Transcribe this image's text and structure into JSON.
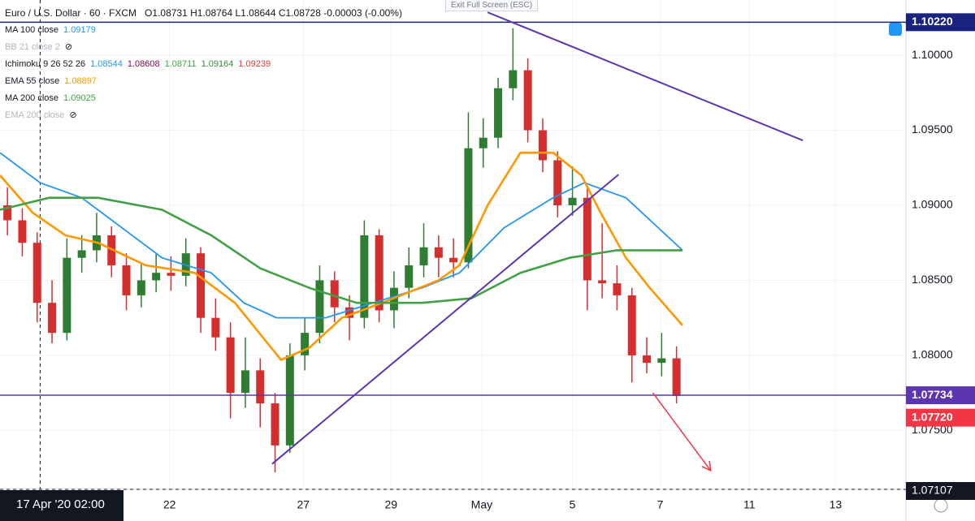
{
  "chart_data": {
    "type": "candlestick",
    "title": "Euro / U.S. Dollar · 60 · FXCM",
    "ohlc_header": "O1.08731 H1.08764 L1.08644 C1.08728 -0.00003 (-0.00%)",
    "exit_hint": "Exit Full Screen (ESC)",
    "up_color": "#2e7d32",
    "down_color": "#d32f2f",
    "xlim": [
      -0.5,
      60.43
    ],
    "ylim": [
      1.07107,
      1.10368
    ],
    "xticks": [
      {
        "value": 10.9,
        "label": "22"
      },
      {
        "value": 19.9,
        "label": "27"
      },
      {
        "value": 25.8,
        "label": "29"
      },
      {
        "value": 31.9,
        "label": "May"
      },
      {
        "value": 38,
        "label": "5"
      },
      {
        "value": 43.9,
        "label": "7"
      },
      {
        "value": 49.9,
        "label": "11"
      },
      {
        "value": 55.7,
        "label": "13"
      }
    ],
    "yticks": [
      {
        "value": 1.075,
        "label": "1.07500"
      },
      {
        "value": 1.08,
        "label": "1.08000"
      },
      {
        "value": 1.085,
        "label": "1.08500"
      },
      {
        "value": 1.09,
        "label": "1.09000"
      },
      {
        "value": 1.095,
        "label": "1.09500"
      },
      {
        "value": 1.1,
        "label": "1.10000"
      }
    ],
    "candles": [
      [
        1.09,
        1.0912,
        1.088,
        1.089
      ],
      [
        1.089,
        1.0898,
        1.0866,
        1.0875
      ],
      [
        1.0875,
        1.0882,
        1.0822,
        1.0835
      ],
      [
        1.0835,
        1.085,
        1.0808,
        1.0815
      ],
      [
        1.0815,
        1.0878,
        1.081,
        1.0865
      ],
      [
        1.0865,
        1.088,
        1.0855,
        1.087
      ],
      [
        1.087,
        1.0895,
        1.0862,
        1.088
      ],
      [
        1.088,
        1.0886,
        1.0852,
        1.086
      ],
      [
        1.086,
        1.0868,
        1.083,
        1.084
      ],
      [
        1.084,
        1.0862,
        1.0832,
        1.085
      ],
      [
        1.085,
        1.0868,
        1.0842,
        1.0855
      ],
      [
        1.0855,
        1.0866,
        1.0843,
        1.0853
      ],
      [
        1.0853,
        1.0878,
        1.0846,
        1.0868
      ],
      [
        1.0868,
        1.0872,
        1.0815,
        1.0825
      ],
      [
        1.0825,
        1.0838,
        1.0803,
        1.0812
      ],
      [
        1.0812,
        1.0822,
        1.0758,
        1.0775
      ],
      [
        1.0775,
        1.0812,
        1.0765,
        1.079
      ],
      [
        1.079,
        1.0798,
        1.0752,
        1.0768
      ],
      [
        1.0768,
        1.0775,
        1.0722,
        1.074
      ],
      [
        1.074,
        1.0808,
        1.0735,
        1.08
      ],
      [
        1.08,
        1.0825,
        1.079,
        1.0815
      ],
      [
        1.0815,
        1.086,
        1.0808,
        1.085
      ],
      [
        1.085,
        1.0856,
        1.0822,
        1.0832
      ],
      [
        1.0832,
        1.084,
        1.081,
        1.0825
      ],
      [
        1.0825,
        1.089,
        1.0818,
        1.088
      ],
      [
        1.088,
        1.0884,
        1.0822,
        1.083
      ],
      [
        1.083,
        1.0856,
        1.0818,
        1.0845
      ],
      [
        1.0845,
        1.0872,
        1.0838,
        1.086
      ],
      [
        1.086,
        1.0888,
        1.0852,
        1.0872
      ],
      [
        1.0872,
        1.088,
        1.0852,
        1.0865
      ],
      [
        1.0865,
        1.0878,
        1.0852,
        1.0862
      ],
      [
        1.0862,
        1.0962,
        1.0858,
        1.0938
      ],
      [
        1.0938,
        1.0958,
        1.0925,
        1.0945
      ],
      [
        1.0945,
        1.0985,
        1.0938,
        1.0978
      ],
      [
        1.0978,
        1.1018,
        1.097,
        1.099
      ],
      [
        1.099,
        1.0998,
        1.0942,
        1.095
      ],
      [
        1.095,
        1.0958,
        1.0922,
        1.093
      ],
      [
        1.093,
        1.0936,
        1.0892,
        1.09
      ],
      [
        1.09,
        1.0926,
        1.0893,
        1.0905
      ],
      [
        1.0905,
        1.0912,
        1.083,
        1.085
      ],
      [
        1.085,
        1.0888,
        1.0838,
        1.0848
      ],
      [
        1.0848,
        1.086,
        1.083,
        1.084
      ],
      [
        1.084,
        1.0845,
        1.0782,
        1.08
      ],
      [
        1.08,
        1.0812,
        1.0788,
        1.0795
      ],
      [
        1.0795,
        1.0815,
        1.0786,
        1.0798
      ],
      [
        1.0798,
        1.0806,
        1.0768,
        1.0773
      ]
    ],
    "legend": [
      {
        "name": "MA 100 close",
        "values": [
          1.09179
        ],
        "colors": [
          "#2196f3"
        ],
        "line": {
          "x": [
            -0.5,
            2.2,
            5,
            7.7,
            10.4,
            13.7,
            15.9,
            18.1,
            21.4,
            24.6,
            27.9,
            30.4,
            33.4,
            36.7,
            38.8,
            41.6,
            45.4
          ],
          "values": [
            1.0935,
            1.0915,
            1.0905,
            1.0885,
            1.0865,
            1.0855,
            1.0835,
            1.0825,
            1.0825,
            1.0835,
            1.0845,
            1.0855,
            1.0885,
            1.0905,
            1.0915,
            1.0905,
            1.087
          ]
        }
      },
      {
        "name": "BB 21 close 2",
        "hidden": true
      },
      {
        "name": "Ichimoku 9 26 52 26",
        "values": [
          1.08544,
          1.08608,
          1.08711,
          1.09164,
          1.09239
        ],
        "colors": [
          "#2196f3",
          "#880e4f",
          "#43a047",
          "#388e3c",
          "#e53935"
        ]
      },
      {
        "name": "EMA 55 close",
        "values": [
          1.08897
        ],
        "colors": [
          "#ff9800"
        ],
        "line": {
          "x": [
            -0.5,
            1.7,
            3.9,
            6.1,
            9.3,
            12.6,
            15.3,
            18.4,
            20.3,
            22.5,
            25.2,
            29,
            30.4,
            32.3,
            34.5,
            36.7,
            38.6,
            39.9,
            41.6,
            43.2,
            45.4
          ],
          "values": [
            1.092,
            1.0895,
            1.088,
            1.0875,
            1.086,
            1.0855,
            1.0835,
            1.0797,
            1.0805,
            1.0825,
            1.0835,
            1.085,
            1.086,
            1.09,
            1.0935,
            1.0935,
            1.092,
            1.0895,
            1.0865,
            1.0845,
            1.082
          ]
        }
      },
      {
        "name": "MA 200 close",
        "values": [
          1.09025
        ],
        "colors": [
          "#43a047"
        ],
        "line": {
          "x": [
            -0.5,
            2.8,
            6.1,
            10.4,
            13.7,
            17,
            20.3,
            23.5,
            27.9,
            31.2,
            34.5,
            37.8,
            41,
            45.4
          ],
          "values": [
            1.0897,
            1.0905,
            1.0905,
            1.0897,
            1.088,
            1.0858,
            1.0845,
            1.0835,
            1.0835,
            1.0838,
            1.0855,
            1.0865,
            1.087,
            1.087
          ]
        }
      },
      {
        "name": "EMA 200 close",
        "hidden": true
      }
    ],
    "levels": [
      {
        "value": 1.1022,
        "label": "1.10220",
        "color": "#1a237e"
      },
      {
        "value": 1.07734,
        "label": "1.07734",
        "color": "#5e35b1"
      }
    ],
    "last_price": {
      "value": 1.0772,
      "label": "1.07720",
      "color": "#f23645"
    },
    "crosshair": {
      "x": 2.2,
      "x_label": "17 Apr '20 02:00",
      "y": 1.07107,
      "y_label": "1.07107"
    },
    "trendlines": [
      {
        "x": [
          17.8,
          41.1
        ],
        "values": [
          1.07276,
          1.09205
        ],
        "color": "#5e35b1"
      },
      {
        "x": [
          32.3,
          53.5
        ],
        "values": [
          1.10286,
          1.09432
        ],
        "color": "#5e35b1"
      }
    ],
    "arrow": {
      "x": [
        43.4,
        47.3
      ],
      "values": [
        1.07751,
        1.07232
      ],
      "color": "#f23645"
    }
  }
}
